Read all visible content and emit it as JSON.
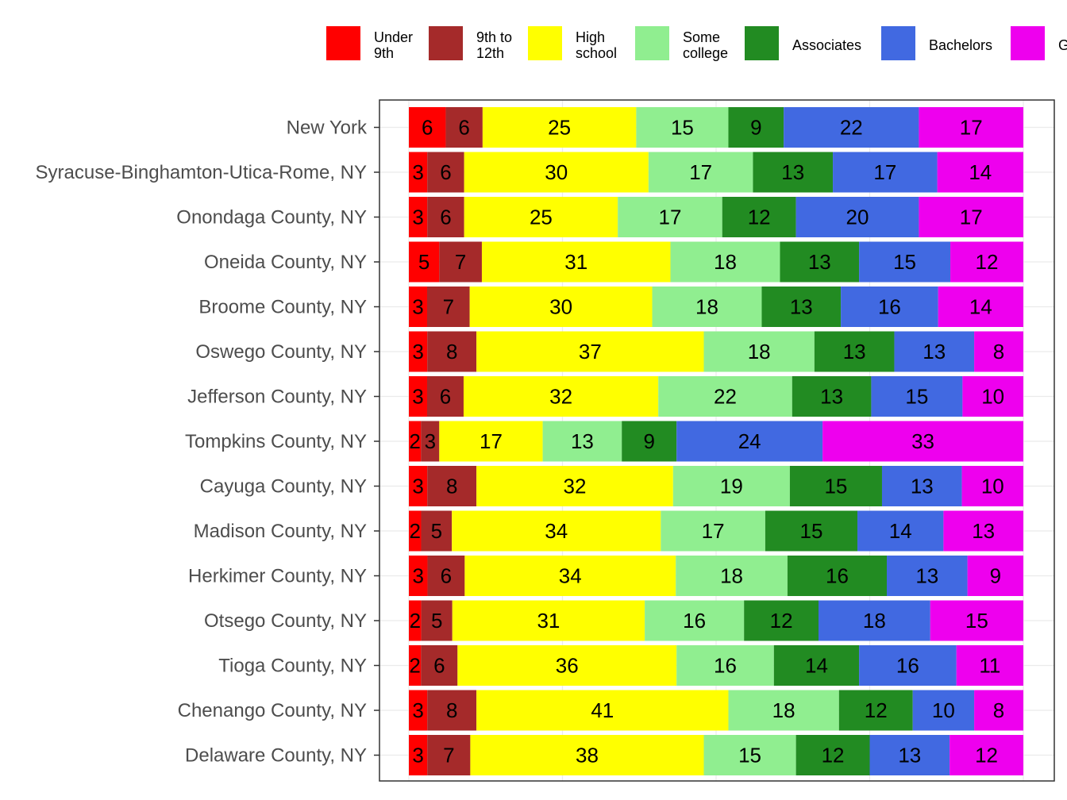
{
  "chart_data": {
    "type": "bar",
    "orientation": "horizontal",
    "stacked": true,
    "normalized": true,
    "title": "",
    "xlabel": "",
    "ylabel": "",
    "xlim": [
      0,
      100
    ],
    "grid": true,
    "legend_position": "top",
    "categories": [
      "New York",
      "Syracuse-Binghamton-Utica-Rome, NY",
      "Onondaga County, NY",
      "Oneida County, NY",
      "Broome County, NY",
      "Oswego County, NY",
      "Jefferson County, NY",
      "Tompkins County, NY",
      "Cayuga County, NY",
      "Madison County, NY",
      "Herkimer County, NY",
      "Otsego County, NY",
      "Tioga County, NY",
      "Chenango County, NY",
      "Delaware County, NY"
    ],
    "series": [
      {
        "legend": [
          "Under",
          "9th"
        ],
        "color": "#ff0000",
        "values": [
          6,
          3,
          3,
          5,
          3,
          3,
          3,
          2,
          3,
          2,
          3,
          2,
          2,
          3,
          3
        ]
      },
      {
        "legend": [
          "9th to",
          "12th"
        ],
        "color": "#a52a2a",
        "values": [
          6,
          6,
          6,
          7,
          7,
          8,
          6,
          3,
          8,
          5,
          6,
          5,
          6,
          8,
          7
        ]
      },
      {
        "legend": [
          "High",
          "school"
        ],
        "color": "#ffff00",
        "values": [
          25,
          30,
          25,
          31,
          30,
          37,
          32,
          17,
          32,
          34,
          34,
          31,
          36,
          41,
          38
        ]
      },
      {
        "legend": [
          "Some",
          "college"
        ],
        "color": "#90ee90",
        "values": [
          15,
          17,
          17,
          18,
          18,
          18,
          22,
          13,
          19,
          17,
          18,
          16,
          16,
          18,
          15
        ]
      },
      {
        "legend": [
          "Associates"
        ],
        "color": "#228b22",
        "values": [
          9,
          13,
          12,
          13,
          13,
          13,
          13,
          9,
          15,
          15,
          16,
          12,
          14,
          12,
          12
        ]
      },
      {
        "legend": [
          "Bachelors"
        ],
        "color": "#4169e1",
        "values": [
          22,
          17,
          20,
          15,
          16,
          13,
          15,
          24,
          13,
          14,
          13,
          18,
          16,
          10,
          13
        ]
      },
      {
        "legend": [
          "G"
        ],
        "color": "#ee00ee",
        "values": [
          17,
          14,
          17,
          12,
          14,
          8,
          10,
          33,
          10,
          13,
          9,
          15,
          11,
          8,
          12
        ]
      }
    ]
  }
}
